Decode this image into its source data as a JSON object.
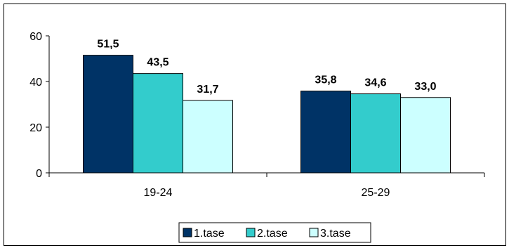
{
  "chart_data": {
    "type": "bar",
    "categories": [
      "19-24",
      "25-29"
    ],
    "series": [
      {
        "name": "1.tase",
        "values": [
          51.5,
          35.8
        ],
        "labels": [
          "51,5",
          "35,8"
        ],
        "color": "#003366"
      },
      {
        "name": "2.tase",
        "values": [
          43.5,
          34.6
        ],
        "labels": [
          "43,5",
          "34,6"
        ],
        "color": "#33CCCC"
      },
      {
        "name": "3.tase",
        "values": [
          31.7,
          33.0
        ],
        "labels": [
          "31,7",
          "33,0"
        ],
        "color": "#CCFFFF"
      }
    ],
    "ylim": [
      0,
      60
    ],
    "yticks": [
      0,
      20,
      40,
      60
    ],
    "ytick_labels": [
      "0",
      "20",
      "40",
      "60"
    ],
    "grid": false,
    "legend_position": "bottom",
    "title": "",
    "xlabel": "",
    "ylabel": ""
  }
}
